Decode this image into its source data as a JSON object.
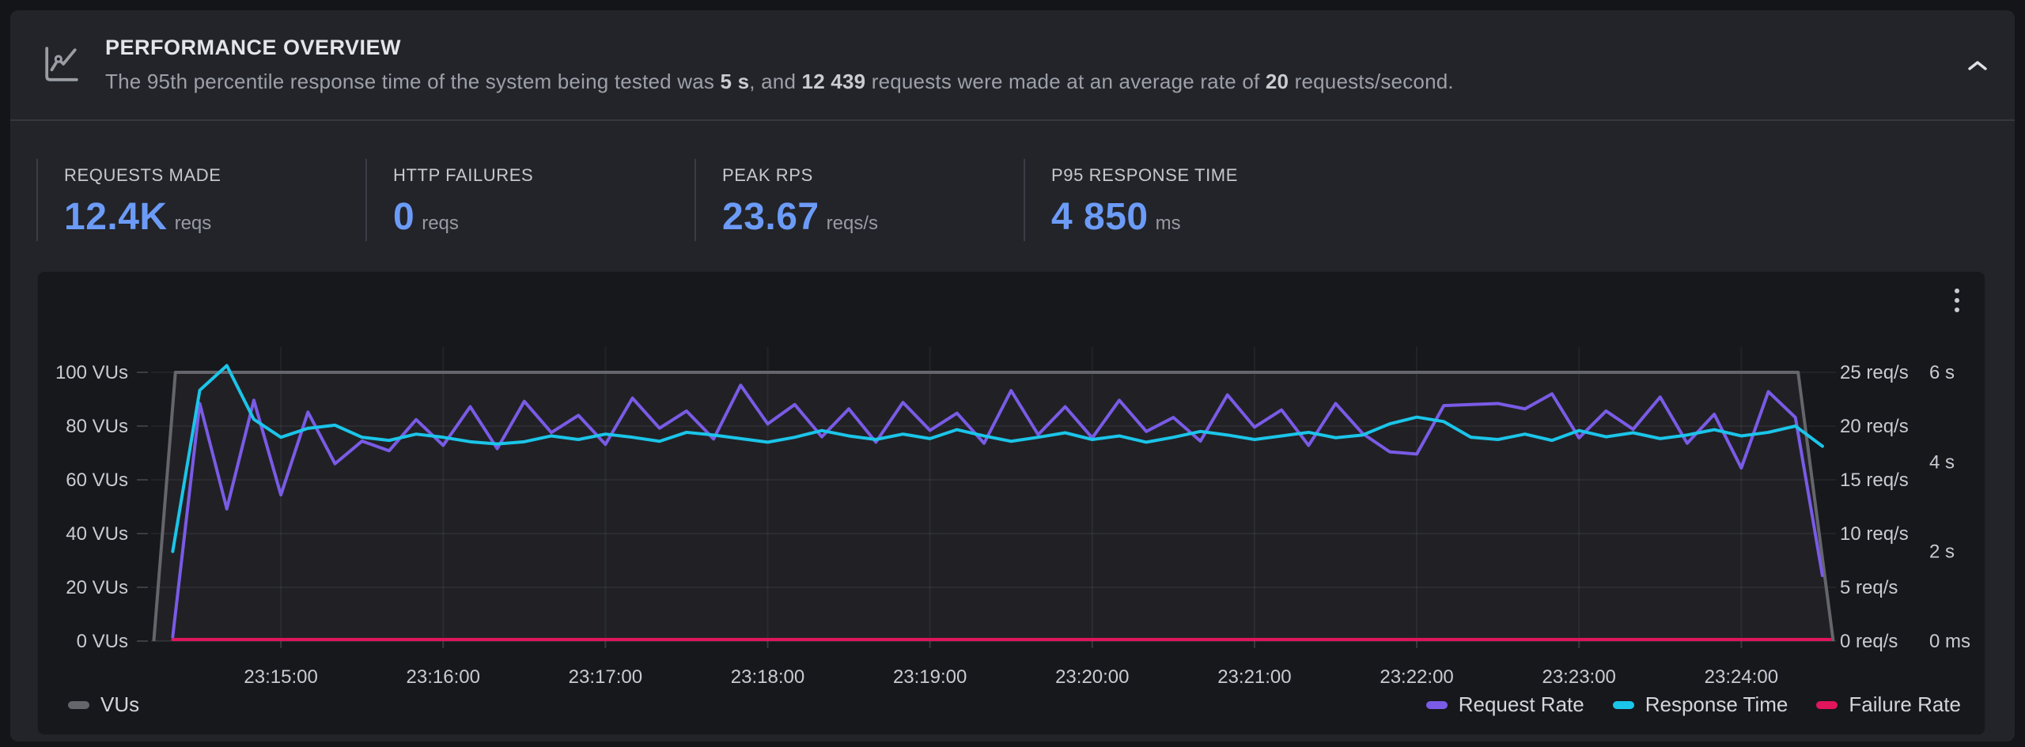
{
  "header": {
    "title": "PERFORMANCE OVERVIEW",
    "subtitle_parts": [
      {
        "text": "The 95th percentile response time of the system being tested was ",
        "em": false
      },
      {
        "text": "5 s",
        "em": true
      },
      {
        "text": ", and ",
        "em": false
      },
      {
        "text": "12 439",
        "em": true
      },
      {
        "text": " requests were made at an average rate of ",
        "em": false
      },
      {
        "text": "20",
        "em": true
      },
      {
        "text": " requests/second.",
        "em": false
      }
    ]
  },
  "stats": [
    {
      "label": "REQUESTS MADE",
      "value": "12.4K",
      "unit": "reqs"
    },
    {
      "label": "HTTP FAILURES",
      "value": "0",
      "unit": "reqs"
    },
    {
      "label": "PEAK RPS",
      "value": "23.67",
      "unit": "reqs/s"
    },
    {
      "label": "P95 RESPONSE TIME",
      "value": "4 850",
      "unit": "ms"
    }
  ],
  "colors": {
    "accent_blue": "#6C9BF7",
    "vus_gray": "#64666B",
    "request_rate_purple": "#7A5BE6",
    "response_time_cyan": "#1BC5E9",
    "failure_rate_pink": "#E0155C"
  },
  "chart_data": {
    "type": "line",
    "x_domain": [
      "23:14:12",
      "23:24:35"
    ],
    "x_ticks": [
      "23:15:00",
      "23:16:00",
      "23:17:00",
      "23:18:00",
      "23:19:00",
      "23:20:00",
      "23:21:00",
      "23:22:00",
      "23:23:00",
      "23:24:00"
    ],
    "grid": true,
    "legend_position": "bottom",
    "axes": {
      "vus": {
        "side": "left",
        "range": [
          0,
          100
        ],
        "tick_labels": [
          "0 VUs",
          "20 VUs",
          "40 VUs",
          "60 VUs",
          "80 VUs",
          "100 VUs"
        ]
      },
      "rps": {
        "side": "right",
        "range": [
          0,
          25
        ],
        "tick_labels": [
          "0 req/s",
          "5 req/s",
          "10 req/s",
          "15 req/s",
          "20 req/s",
          "25 req/s"
        ]
      },
      "time": {
        "side": "right",
        "range": [
          0,
          6
        ],
        "tick_labels": [
          "0 ms",
          "2 s",
          "4 s",
          "6 s"
        ],
        "tick_values": [
          0,
          2,
          4,
          6
        ]
      }
    },
    "series": [
      {
        "name": "VUs",
        "axis": "vus",
        "color": "#64666B",
        "fill": "rgba(255,255,255,0.042)",
        "points": [
          [
            "23:14:13",
            0
          ],
          [
            "23:14:21",
            100
          ],
          [
            "23:24:21",
            100
          ],
          [
            "23:24:34",
            0
          ]
        ]
      },
      {
        "name": "Request Rate",
        "axis": "rps",
        "color": "#7A5BE6",
        "start": "23:14:20",
        "step_s": 10,
        "values": [
          0.4,
          22.1,
          12.3,
          22.4,
          13.6,
          21.3,
          16.5,
          18.6,
          17.7,
          20.6,
          18.2,
          21.8,
          17.9,
          22.3,
          19.4,
          21.0,
          18.3,
          22.6,
          19.8,
          21.4,
          18.8,
          23.8,
          20.2,
          22.0,
          19.0,
          21.6,
          18.5,
          22.2,
          19.6,
          21.2,
          18.4,
          23.3,
          19.2,
          21.8,
          18.9,
          22.4,
          19.5,
          20.8,
          18.6,
          22.9,
          19.9,
          21.5,
          18.2,
          22.1,
          19.3,
          17.6,
          17.4,
          21.9,
          22.0,
          22.1,
          21.6,
          23.0,
          18.9,
          21.4,
          19.7,
          22.7,
          18.4,
          21.1,
          16.1,
          23.2,
          20.8,
          6.1
        ]
      },
      {
        "name": "Response Time",
        "axis": "time",
        "color": "#1BC5E9",
        "start": "23:14:20",
        "step_s": 10,
        "values": [
          2.0,
          5.6,
          6.15,
          4.95,
          4.55,
          4.75,
          4.82,
          4.55,
          4.48,
          4.62,
          4.55,
          4.45,
          4.4,
          4.45,
          4.58,
          4.5,
          4.62,
          4.55,
          4.46,
          4.66,
          4.6,
          4.52,
          4.44,
          4.55,
          4.7,
          4.58,
          4.5,
          4.62,
          4.52,
          4.72,
          4.58,
          4.46,
          4.55,
          4.65,
          4.5,
          4.58,
          4.44,
          4.55,
          4.68,
          4.6,
          4.5,
          4.58,
          4.66,
          4.54,
          4.6,
          4.85,
          5.0,
          4.9,
          4.55,
          4.5,
          4.62,
          4.48,
          4.7,
          4.56,
          4.65,
          4.52,
          4.6,
          4.72,
          4.58,
          4.66,
          4.8,
          4.35
        ]
      },
      {
        "name": "Failure Rate",
        "axis": "rps",
        "color": "#E0155C",
        "points": [
          [
            "23:14:20",
            0
          ],
          [
            "23:24:33",
            0
          ]
        ]
      }
    ]
  }
}
